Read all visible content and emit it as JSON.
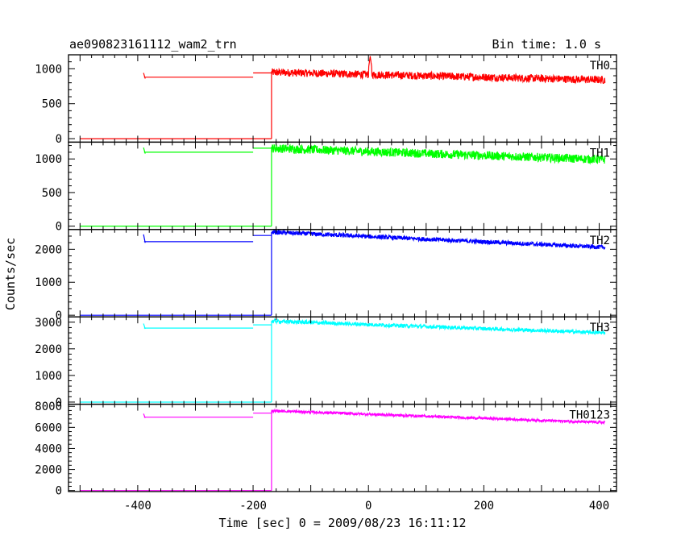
{
  "title_left": "ae090823161112_wam2_trn",
  "title_right": "Bin time: 1.0 s",
  "xlabel": "Time [sec] 0 = 2009/08/23 16:11:12",
  "ylabel": "Counts/sec",
  "chart_data": [
    {
      "type": "line",
      "name": "TH0",
      "color": "#ff0000",
      "xlim": [
        -520,
        430
      ],
      "ylim": [
        -50,
        1200
      ],
      "xticks": [
        -400,
        -200,
        0,
        200,
        400
      ],
      "yticks": [
        0,
        500,
        1000
      ],
      "ytick_labels": [
        "0",
        "500",
        "1000"
      ],
      "segments": [
        {
          "x": [
            -500,
            -168
          ],
          "y": [
            0,
            0
          ]
        },
        {
          "x": [
            -389,
            -200
          ],
          "y": [
            880,
            880
          ]
        },
        {
          "x": [
            -200,
            -168
          ],
          "y": [
            940,
            940
          ]
        },
        {
          "x": [
            -168,
            410
          ],
          "y_start": 950,
          "y_end": 840,
          "noise": 55,
          "spike": {
            "x": 3,
            "y": 1180
          }
        },
        {
          "x": [
            -390,
            -387
          ],
          "y": [
            940,
            860
          ]
        }
      ]
    },
    {
      "type": "line",
      "name": "TH1",
      "color": "#00ff00",
      "xlim": [
        -520,
        430
      ],
      "ylim": [
        -50,
        1250
      ],
      "xticks": [
        -400,
        -200,
        0,
        200,
        400
      ],
      "yticks": [
        0,
        500,
        1000
      ],
      "ytick_labels": [
        "0",
        "500",
        "1000"
      ],
      "segments": [
        {
          "x": [
            -500,
            -168
          ],
          "y": [
            0,
            0
          ]
        },
        {
          "x": [
            -389,
            -200
          ],
          "y": [
            1100,
            1100
          ]
        },
        {
          "x": [
            -200,
            -168
          ],
          "y": [
            1160,
            1160
          ]
        },
        {
          "x": [
            -168,
            410
          ],
          "y_start": 1160,
          "y_end": 990,
          "noise": 65
        },
        {
          "x": [
            -390,
            -387
          ],
          "y": [
            1170,
            1080
          ]
        }
      ]
    },
    {
      "type": "line",
      "name": "TH2",
      "color": "#0000ff",
      "xlim": [
        -520,
        430
      ],
      "ylim": [
        -50,
        2600
      ],
      "xticks": [
        -400,
        -200,
        0,
        200,
        400
      ],
      "yticks": [
        0,
        1000,
        2000
      ],
      "ytick_labels": [
        "0",
        "1000",
        "2000"
      ],
      "segments": [
        {
          "x": [
            -500,
            -168
          ],
          "y": [
            0,
            0
          ]
        },
        {
          "x": [
            -389,
            -200
          ],
          "y": [
            2230,
            2230
          ]
        },
        {
          "x": [
            -200,
            -168
          ],
          "y": [
            2420,
            2420
          ]
        },
        {
          "x": [
            -168,
            410
          ],
          "y_start": 2520,
          "y_end": 2060,
          "noise": 65
        },
        {
          "x": [
            -390,
            -387
          ],
          "y": [
            2450,
            2200
          ]
        }
      ]
    },
    {
      "type": "line",
      "name": "TH3",
      "color": "#00ffff",
      "xlim": [
        -520,
        430
      ],
      "ylim": [
        -80,
        3200
      ],
      "xticks": [
        -400,
        -200,
        0,
        200,
        400
      ],
      "yticks": [
        0,
        1000,
        2000,
        3000
      ],
      "ytick_labels": [
        "0",
        "1000",
        "2000",
        "3000"
      ],
      "segments": [
        {
          "x": [
            -500,
            -168
          ],
          "y": [
            0,
            0
          ]
        },
        {
          "x": [
            -389,
            -200
          ],
          "y": [
            2780,
            2780
          ]
        },
        {
          "x": [
            -200,
            -168
          ],
          "y": [
            2900,
            2900
          ]
        },
        {
          "x": [
            -168,
            410
          ],
          "y_start": 3040,
          "y_end": 2600,
          "noise": 70
        },
        {
          "x": [
            -390,
            -387
          ],
          "y": [
            2950,
            2750
          ]
        }
      ]
    },
    {
      "type": "line",
      "name": "TH0123",
      "color": "#ff00ff",
      "xlim": [
        -520,
        430
      ],
      "ylim": [
        -100,
        8200
      ],
      "xticks": [
        -400,
        -200,
        0,
        200,
        400
      ],
      "yticks": [
        0,
        2000,
        4000,
        6000,
        8000
      ],
      "ytick_labels": [
        "0",
        "2000",
        "4000",
        "6000",
        "8000"
      ],
      "segments": [
        {
          "x": [
            -500,
            -168
          ],
          "y": [
            0,
            0
          ]
        },
        {
          "x": [
            -389,
            -200
          ],
          "y": [
            6970,
            6970
          ]
        },
        {
          "x": [
            -200,
            -168
          ],
          "y": [
            7350,
            7350
          ]
        },
        {
          "x": [
            -168,
            410
          ],
          "y_start": 7580,
          "y_end": 6450,
          "noise": 120
        },
        {
          "x": [
            -390,
            -387
          ],
          "y": [
            7300,
            6900
          ]
        }
      ]
    }
  ]
}
